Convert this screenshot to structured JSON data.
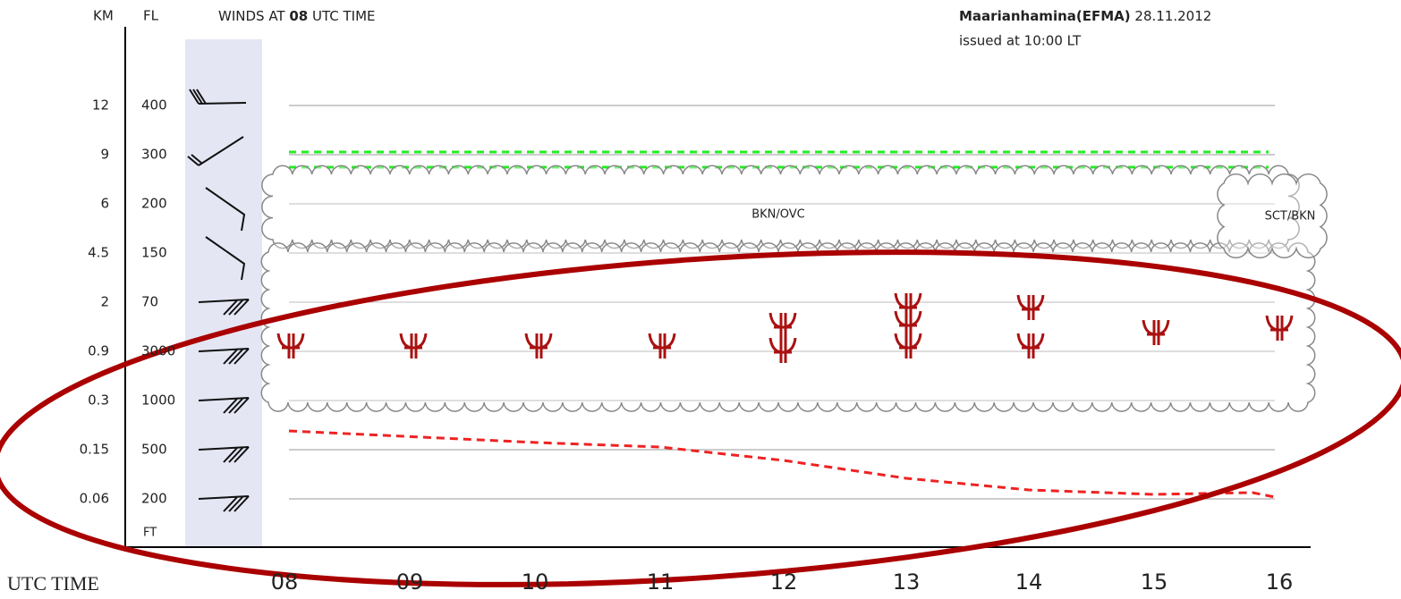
{
  "header": {
    "km_label": "KM",
    "fl_label": "FL",
    "title_prefix": "WINDS AT",
    "title_hour": "08",
    "title_suffix": "UTC TIME",
    "station": "Maarianhamina(EFMA)",
    "date": "28.11.2012",
    "issued": "issued at 10:00 LT"
  },
  "levels": [
    {
      "km": "12",
      "fl": "400"
    },
    {
      "km": "9",
      "fl": "300"
    },
    {
      "km": "6",
      "fl": "200"
    },
    {
      "km": "4.5",
      "fl": "150"
    },
    {
      "km": "2",
      "fl": "70"
    },
    {
      "km": "0.9",
      "fl": "3000"
    },
    {
      "km": "0.3",
      "fl": "1000"
    },
    {
      "km": "0.15",
      "fl": "500"
    },
    {
      "km": "0.06",
      "fl": "200"
    }
  ],
  "ft_label": "FT",
  "x_label": "UTC TIME",
  "times": [
    "08",
    "09",
    "10",
    "11",
    "12",
    "13",
    "14",
    "15",
    "16"
  ],
  "clouds": {
    "main": "BKN/OVC",
    "right": "SCT/BKN"
  }
}
